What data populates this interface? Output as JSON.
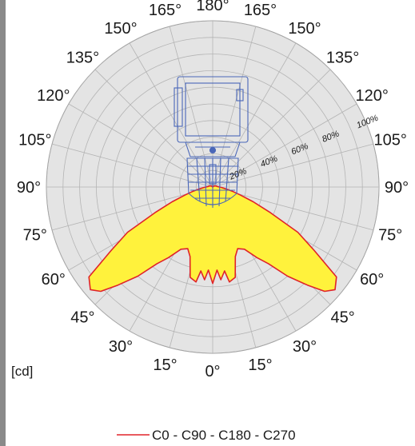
{
  "chart_data": {
    "type": "polar",
    "unit": "[cd]",
    "angle_labels": [
      {
        "text": "180°",
        "angle": 180,
        "side": "top"
      },
      {
        "text": "165°",
        "angle": 165,
        "side": "left"
      },
      {
        "text": "165°",
        "angle": 165,
        "side": "right"
      },
      {
        "text": "150°",
        "angle": 150,
        "side": "left"
      },
      {
        "text": "150°",
        "angle": 150,
        "side": "right"
      },
      {
        "text": "135°",
        "angle": 135,
        "side": "left"
      },
      {
        "text": "135°",
        "angle": 135,
        "side": "right"
      },
      {
        "text": "120°",
        "angle": 120,
        "side": "left"
      },
      {
        "text": "120°",
        "angle": 120,
        "side": "right"
      },
      {
        "text": "105°",
        "angle": 105,
        "side": "left"
      },
      {
        "text": "105°",
        "angle": 105,
        "side": "right"
      },
      {
        "text": "90°",
        "angle": 90,
        "side": "left"
      },
      {
        "text": "90°",
        "angle": 90,
        "side": "right"
      },
      {
        "text": "75°",
        "angle": 75,
        "side": "left"
      },
      {
        "text": "75°",
        "angle": 75,
        "side": "right"
      },
      {
        "text": "60°",
        "angle": 60,
        "side": "left"
      },
      {
        "text": "60°",
        "angle": 60,
        "side": "right"
      },
      {
        "text": "45°",
        "angle": 45,
        "side": "left"
      },
      {
        "text": "45°",
        "angle": 45,
        "side": "right"
      },
      {
        "text": "30°",
        "angle": 30,
        "side": "left"
      },
      {
        "text": "30°",
        "angle": 30,
        "side": "right"
      },
      {
        "text": "15°",
        "angle": 15,
        "side": "left"
      },
      {
        "text": "15°",
        "angle": 15,
        "side": "right"
      },
      {
        "text": "0°",
        "angle": 0,
        "side": "bottom"
      }
    ],
    "ring_labels": [
      {
        "text": "20%",
        "fraction": 0.2
      },
      {
        "text": "40%",
        "fraction": 0.4
      },
      {
        "text": "60%",
        "fraction": 0.6
      },
      {
        "text": "80%",
        "fraction": 0.8
      },
      {
        "text": "100%",
        "fraction": 1.0
      }
    ],
    "series": [
      {
        "name": "C0 - C90 - C180 - C270",
        "color": "#e0232a",
        "fill": "#fff23c",
        "angles_deg": [
          0,
          3,
          5,
          8,
          10,
          14,
          18,
          22,
          27,
          32,
          36,
          40,
          44,
          47,
          50,
          54,
          58,
          62,
          66,
          70,
          74,
          78,
          82,
          88,
          95,
          110,
          130,
          150,
          180
        ],
        "relative_intensity": [
          0.58,
          0.5,
          0.56,
          0.51,
          0.58,
          0.56,
          0.44,
          0.4,
          0.42,
          0.5,
          0.57,
          0.7,
          0.82,
          0.92,
          0.96,
          0.92,
          0.72,
          0.58,
          0.38,
          0.26,
          0.17,
          0.12,
          0.08,
          0.05,
          0.03,
          0.02,
          0.01,
          0.0,
          0.0
        ]
      }
    ],
    "grid": true,
    "legend": "bottom"
  }
}
